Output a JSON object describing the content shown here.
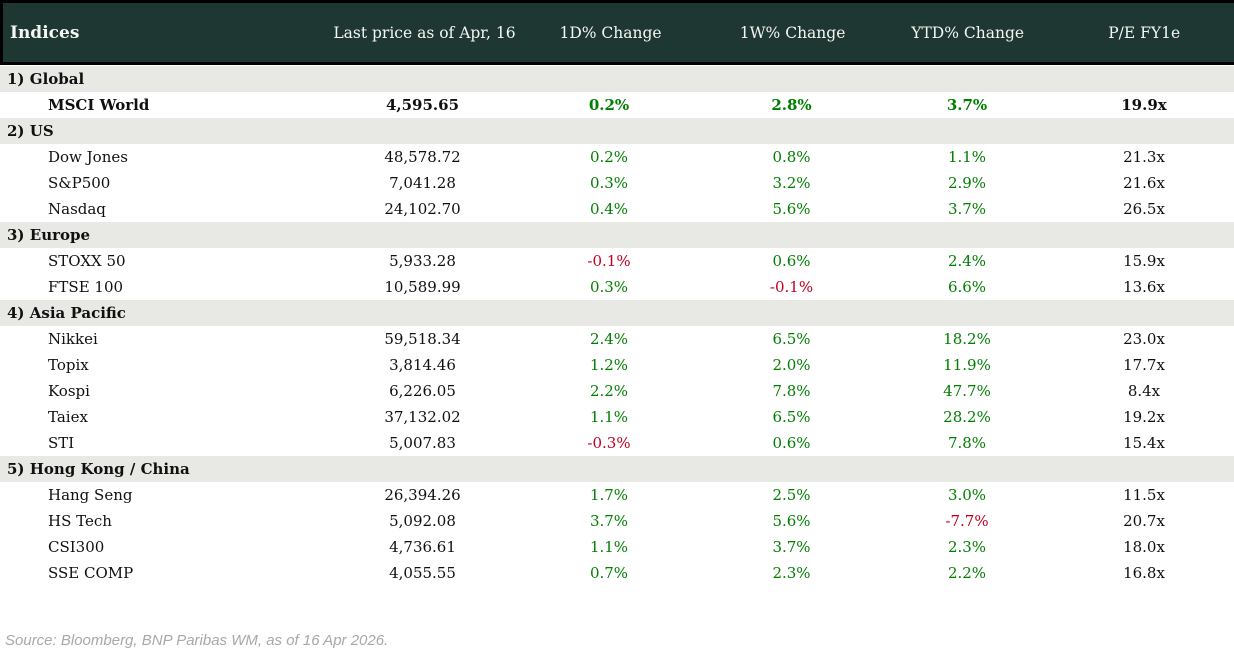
{
  "colors": {
    "header_bg": "#1e3732",
    "section_bg": "#e8e8e4",
    "positive": "#007e00",
    "negative": "#c00021"
  },
  "chart_data": {
    "type": "table",
    "title": "Indices",
    "columns": [
      "Indices",
      "Last price as of Apr, 16",
      "1D% Change",
      "1W% Change",
      "YTD% Change",
      "P/E FY1e"
    ],
    "sections": [
      {
        "label": "1) Global",
        "rows": [
          {
            "name": "MSCI World",
            "bold": true,
            "values": [
              "4,595.65",
              "0.2%",
              "2.8%",
              "3.7%",
              "19.9x"
            ]
          }
        ]
      },
      {
        "label": "2) US",
        "rows": [
          {
            "name": "Dow Jones",
            "values": [
              "48,578.72",
              "0.2%",
              "0.8%",
              "1.1%",
              "21.3x"
            ]
          },
          {
            "name": "S&P500",
            "values": [
              "7,041.28",
              "0.3%",
              "3.2%",
              "2.9%",
              "21.6x"
            ]
          },
          {
            "name": "Nasdaq",
            "values": [
              "24,102.70",
              "0.4%",
              "5.6%",
              "3.7%",
              "26.5x"
            ]
          }
        ]
      },
      {
        "label": "3) Europe",
        "rows": [
          {
            "name": "STOXX 50",
            "values": [
              "5,933.28",
              "-0.1%",
              "0.6%",
              "2.4%",
              "15.9x"
            ]
          },
          {
            "name": "FTSE 100",
            "values": [
              "10,589.99",
              "0.3%",
              "-0.1%",
              "6.6%",
              "13.6x"
            ]
          }
        ]
      },
      {
        "label": "4) Asia Pacific",
        "rows": [
          {
            "name": "Nikkei",
            "values": [
              "59,518.34",
              "2.4%",
              "6.5%",
              "18.2%",
              "23.0x"
            ]
          },
          {
            "name": "Topix",
            "values": [
              "3,814.46",
              "1.2%",
              "2.0%",
              "11.9%",
              "17.7x"
            ]
          },
          {
            "name": "Kospi",
            "values": [
              "6,226.05",
              "2.2%",
              "7.8%",
              "47.7%",
              "8.4x"
            ]
          },
          {
            "name": "Taiex",
            "values": [
              "37,132.02",
              "1.1%",
              "6.5%",
              "28.2%",
              "19.2x"
            ]
          },
          {
            "name": "STI",
            "values": [
              "5,007.83",
              "-0.3%",
              "0.6%",
              "7.8%",
              "15.4x"
            ]
          }
        ]
      },
      {
        "label": "5) Hong Kong / China",
        "rows": [
          {
            "name": "Hang Seng",
            "values": [
              "26,394.26",
              "1.7%",
              "2.5%",
              "3.0%",
              "11.5x"
            ]
          },
          {
            "name": "HS Tech",
            "values": [
              "5,092.08",
              "3.7%",
              "5.6%",
              "-7.7%",
              "20.7x"
            ]
          },
          {
            "name": "CSI300",
            "values": [
              "4,736.61",
              "1.1%",
              "3.7%",
              "2.3%",
              "18.0x"
            ]
          },
          {
            "name": "SSE COMP",
            "values": [
              "4,055.55",
              "0.7%",
              "2.3%",
              "2.2%",
              "16.8x"
            ]
          }
        ]
      }
    ]
  },
  "footer": {
    "source": "Source: Bloomberg, BNP Paribas WM, as of 16 Apr 2026."
  }
}
